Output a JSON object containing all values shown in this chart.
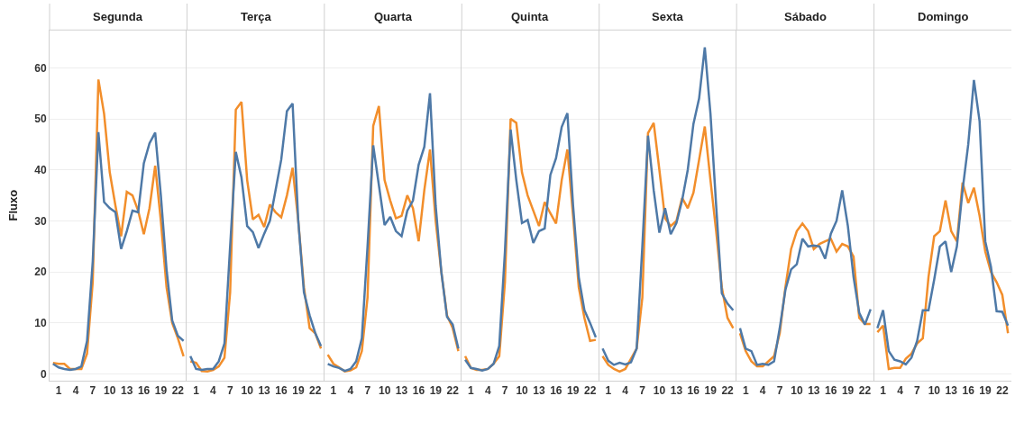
{
  "chart_data": [
    {
      "type": "line",
      "title": "Segunda",
      "ylabel": "Fluxo",
      "x": [
        0,
        1,
        2,
        3,
        4,
        5,
        6,
        7,
        8,
        9,
        10,
        11,
        12,
        13,
        14,
        15,
        16,
        17,
        18,
        19,
        20,
        21,
        22,
        23
      ],
      "xlim": [
        -0.6,
        23.6
      ],
      "xticks": [
        1,
        4,
        7,
        10,
        13,
        16,
        19,
        22
      ],
      "ylim": [
        -1.3,
        67.4
      ],
      "yticks": [
        0,
        10,
        20,
        30,
        40,
        50,
        60
      ],
      "grid": "y",
      "series": [
        {
          "color": "#f28e2b",
          "values": [
            2.2,
            2,
            2,
            1,
            1,
            1,
            4,
            18,
            57.7,
            51,
            39.5,
            33,
            27,
            35.7,
            35,
            32,
            27.4,
            32.5,
            40.8,
            30,
            17,
            10,
            7,
            3.5
          ]
        },
        {
          "color": "#4e79a7",
          "values": [
            2,
            1.3,
            1,
            0.8,
            1,
            1.5,
            6.5,
            22,
            47.4,
            33.7,
            32.5,
            31.7,
            24.5,
            28,
            32,
            31.7,
            41.3,
            45.2,
            47.3,
            35,
            20.5,
            10.5,
            7.5,
            6.5
          ]
        }
      ]
    },
    {
      "type": "line",
      "title": "Terça",
      "x": [
        0,
        1,
        2,
        3,
        4,
        5,
        6,
        7,
        8,
        9,
        10,
        11,
        12,
        13,
        14,
        15,
        16,
        17,
        18,
        19,
        20,
        21,
        22,
        23
      ],
      "xlim": [
        -0.6,
        23.6
      ],
      "xticks": [
        1,
        4,
        7,
        10,
        13,
        16,
        19,
        22
      ],
      "ylim": [
        -1.3,
        67.4
      ],
      "yticks": [
        0,
        10,
        20,
        30,
        40,
        50,
        60
      ],
      "grid": "y",
      "tick_labels": "x",
      "series": [
        {
          "color": "#f28e2b",
          "values": [
            2.5,
            2.2,
            0.6,
            0.5,
            0.8,
            1.5,
            3.2,
            16,
            51.8,
            53.3,
            38,
            30.3,
            31.2,
            28.8,
            33.2,
            31.7,
            30.7,
            35,
            40.4,
            30,
            17,
            9,
            8,
            5
          ]
        },
        {
          "color": "#4e79a7",
          "values": [
            3.5,
            1,
            0.8,
            1,
            1,
            2.5,
            6,
            25,
            43.5,
            38.5,
            29,
            27.8,
            24.7,
            27.5,
            30,
            36,
            42,
            51.5,
            53,
            30,
            16,
            11.5,
            8,
            5.5
          ]
        }
      ]
    },
    {
      "type": "line",
      "title": "Quarta",
      "x": [
        0,
        1,
        2,
        3,
        4,
        5,
        6,
        7,
        8,
        9,
        10,
        11,
        12,
        13,
        14,
        15,
        16,
        17,
        18,
        19,
        20,
        21,
        22,
        23
      ],
      "xlim": [
        -0.6,
        23.6
      ],
      "xticks": [
        1,
        4,
        7,
        10,
        13,
        16,
        19,
        22
      ],
      "ylim": [
        -1.3,
        67.4
      ],
      "yticks": [
        0,
        10,
        20,
        30,
        40,
        50,
        60
      ],
      "grid": "y",
      "tick_labels": "x",
      "series": [
        {
          "color": "#f28e2b",
          "values": [
            3.8,
            2,
            1.3,
            0.5,
            0.7,
            1.3,
            4.5,
            15,
            48.6,
            52.5,
            38,
            34,
            30.5,
            31,
            35,
            32.5,
            26,
            36,
            44,
            30,
            20,
            11.5,
            9,
            4.5
          ]
        },
        {
          "color": "#4e79a7",
          "values": [
            2,
            1.5,
            1.2,
            0.6,
            1,
            2.5,
            7,
            25,
            44.8,
            37,
            29.2,
            30.8,
            28,
            27,
            32,
            34,
            41,
            44.5,
            55,
            33,
            20,
            11.2,
            9.7,
            5
          ]
        }
      ]
    },
    {
      "type": "line",
      "title": "Quinta",
      "x": [
        0,
        1,
        2,
        3,
        4,
        5,
        6,
        7,
        8,
        9,
        10,
        11,
        12,
        13,
        14,
        15,
        16,
        17,
        18,
        19,
        20,
        21,
        22,
        23
      ],
      "xlim": [
        -0.6,
        23.6
      ],
      "xticks": [
        1,
        4,
        7,
        10,
        13,
        16,
        19,
        22
      ],
      "ylim": [
        -1.3,
        67.4
      ],
      "yticks": [
        0,
        10,
        20,
        30,
        40,
        50,
        60
      ],
      "grid": "y",
      "tick_labels": "x",
      "series": [
        {
          "color": "#f28e2b",
          "values": [
            3.5,
            1.2,
            0.8,
            0.8,
            1,
            2,
            3.5,
            18,
            50,
            49.2,
            39.5,
            35,
            32,
            29,
            33.7,
            31.5,
            29.5,
            38,
            44,
            31,
            17,
            11,
            6.5,
            6.7
          ]
        },
        {
          "color": "#4e79a7",
          "values": [
            2.8,
            1.2,
            1,
            0.7,
            1,
            2,
            5.5,
            24,
            47.9,
            38,
            29.6,
            30.2,
            25.7,
            28,
            28.5,
            39,
            42.3,
            48.4,
            51.1,
            33,
            19,
            12.5,
            10,
            7.2
          ]
        }
      ]
    },
    {
      "type": "line",
      "title": "Sexta",
      "x": [
        0,
        1,
        2,
        3,
        4,
        5,
        6,
        7,
        8,
        9,
        10,
        11,
        12,
        13,
        14,
        15,
        16,
        17,
        18,
        19,
        20,
        21,
        22,
        23
      ],
      "xlim": [
        -0.6,
        23.6
      ],
      "xticks": [
        1,
        4,
        7,
        10,
        13,
        16,
        19,
        22
      ],
      "ylim": [
        -1.3,
        67.4
      ],
      "yticks": [
        0,
        10,
        20,
        30,
        40,
        50,
        60
      ],
      "grid": "y",
      "tick_labels": "x",
      "series": [
        {
          "color": "#f28e2b",
          "values": [
            3.5,
            1.8,
            1,
            0.5,
            1,
            3,
            5,
            15,
            47.2,
            49.2,
            40,
            30.5,
            29,
            30,
            34.5,
            32.5,
            35.5,
            42,
            48.5,
            38,
            28,
            17,
            11,
            9
          ]
        },
        {
          "color": "#4e79a7",
          "values": [
            5,
            2.6,
            1.8,
            2.2,
            1.9,
            2.3,
            5,
            25,
            46.7,
            36,
            27.7,
            32.5,
            27.4,
            29.6,
            34,
            40,
            49,
            54,
            64,
            51,
            33,
            15.8,
            13.8,
            12.5
          ]
        }
      ]
    },
    {
      "type": "line",
      "title": "Sábado",
      "x": [
        0,
        1,
        2,
        3,
        4,
        5,
        6,
        7,
        8,
        9,
        10,
        11,
        12,
        13,
        14,
        15,
        16,
        17,
        18,
        19,
        20,
        21,
        22,
        23
      ],
      "xlim": [
        -0.6,
        23.6
      ],
      "xticks": [
        1,
        4,
        7,
        10,
        13,
        16,
        19,
        22
      ],
      "ylim": [
        -1.3,
        67.4
      ],
      "yticks": [
        0,
        10,
        20,
        30,
        40,
        50,
        60
      ],
      "grid": "y",
      "tick_labels": "x",
      "series": [
        {
          "color": "#f28e2b",
          "values": [
            8,
            4.5,
            2.5,
            1.5,
            1.5,
            2.5,
            3.5,
            8,
            17,
            24.5,
            28,
            29.5,
            28,
            24.5,
            25.5,
            26,
            26.5,
            24,
            25.5,
            25,
            23,
            11,
            9.8,
            9.8
          ]
        },
        {
          "color": "#4e79a7",
          "values": [
            9,
            5,
            4.5,
            1.8,
            2,
            1.8,
            2.5,
            9,
            16.5,
            20.5,
            21.5,
            26.5,
            25,
            25.2,
            25,
            22.6,
            27.5,
            30,
            36,
            29,
            19,
            12,
            9.7,
            12.7
          ]
        }
      ]
    },
    {
      "type": "line",
      "title": "Domingo",
      "x": [
        0,
        1,
        2,
        3,
        4,
        5,
        6,
        7,
        8,
        9,
        10,
        11,
        12,
        13,
        14,
        15,
        16,
        17,
        18,
        19,
        20,
        21,
        22,
        23
      ],
      "xlim": [
        -0.6,
        23.6
      ],
      "xticks": [
        1,
        4,
        7,
        10,
        13,
        16,
        19,
        22
      ],
      "ylim": [
        -1.3,
        67.4
      ],
      "yticks": [
        0,
        10,
        20,
        30,
        40,
        50,
        60
      ],
      "grid": "y",
      "tick_labels": "x",
      "series": [
        {
          "color": "#f28e2b",
          "values": [
            8.2,
            9.5,
            1,
            1.2,
            1.2,
            3,
            4,
            6,
            7,
            19,
            27,
            28,
            34,
            28,
            26,
            37.5,
            33.5,
            36.5,
            31,
            24,
            20,
            18,
            15.5,
            8
          ]
        },
        {
          "color": "#4e79a7",
          "values": [
            9,
            12.5,
            4.5,
            2.8,
            2.5,
            1.9,
            3.2,
            6.5,
            12.5,
            12.5,
            18.5,
            25,
            26,
            20,
            25,
            36,
            45,
            57.6,
            49.5,
            26,
            21,
            12.3,
            12.2,
            9.5
          ]
        }
      ]
    }
  ]
}
